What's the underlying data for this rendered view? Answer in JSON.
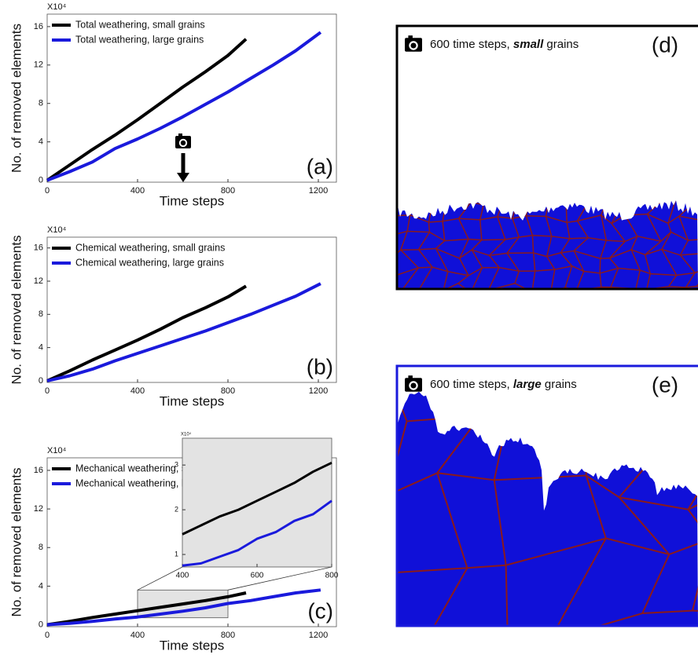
{
  "chart_data": [
    {
      "type": "line",
      "panel_label": "(a)",
      "xlabel": "Time steps",
      "ylabel": "No. of removed elements",
      "y_multiplier": "X10⁴",
      "xlim": [
        0,
        1280
      ],
      "ylim": [
        -0.2,
        17.3
      ],
      "xticks": [
        0,
        400,
        800,
        1200
      ],
      "yticks": [
        0,
        4,
        8,
        12,
        16
      ],
      "legend_position": "upper left",
      "series": [
        {
          "name": "Total weathering,  small grains",
          "color": "#000000",
          "x": [
            0,
            100,
            200,
            300,
            400,
            500,
            600,
            700,
            800,
            880
          ],
          "values": [
            0,
            1.6,
            3.2,
            4.7,
            6.3,
            8.0,
            9.7,
            11.3,
            13.0,
            14.7
          ]
        },
        {
          "name": "Total weathering,  large grains",
          "color": "#1a1adc",
          "x": [
            0,
            100,
            200,
            300,
            400,
            500,
            600,
            700,
            800,
            900,
            1000,
            1100,
            1210
          ],
          "values": [
            0,
            0.9,
            1.9,
            3.3,
            4.3,
            5.4,
            6.6,
            7.9,
            9.2,
            10.6,
            12.0,
            13.5,
            15.4
          ]
        }
      ]
    },
    {
      "type": "line",
      "panel_label": "(b)",
      "xlabel": "Time steps",
      "ylabel": "No. of removed elements",
      "y_multiplier": "X10⁴",
      "xlim": [
        0,
        1280
      ],
      "ylim": [
        -0.2,
        17.3
      ],
      "xticks": [
        0,
        400,
        800,
        1200
      ],
      "yticks": [
        0,
        4,
        8,
        12,
        16
      ],
      "legend_position": "upper left",
      "series": [
        {
          "name": "Chemical weathering,  small grains",
          "color": "#000000",
          "x": [
            0,
            100,
            200,
            300,
            400,
            500,
            600,
            700,
            800,
            880
          ],
          "values": [
            0,
            1.2,
            2.5,
            3.7,
            4.9,
            6.2,
            7.6,
            8.8,
            10.1,
            11.4
          ]
        },
        {
          "name": "Chemical weathering,  large grains",
          "color": "#1a1adc",
          "x": [
            0,
            100,
            200,
            300,
            400,
            500,
            600,
            700,
            800,
            900,
            1000,
            1100,
            1210
          ],
          "values": [
            0,
            0.6,
            1.4,
            2.4,
            3.3,
            4.2,
            5.1,
            6.0,
            7.0,
            8.0,
            9.1,
            10.2,
            11.7
          ]
        }
      ]
    },
    {
      "type": "line",
      "panel_label": "(c)",
      "xlabel": "Time steps",
      "ylabel": "No. of removed elements",
      "y_multiplier": "X10⁴",
      "xlim": [
        0,
        1280
      ],
      "ylim": [
        -0.2,
        17.3
      ],
      "xticks": [
        0,
        400,
        800,
        1200
      ],
      "yticks": [
        0,
        4,
        8,
        12,
        16
      ],
      "legend_position": "upper left",
      "series": [
        {
          "name": "Mechanical weathering,  small grains",
          "color": "#000000",
          "x": [
            0,
            100,
            200,
            300,
            400,
            500,
            600,
            700,
            800,
            880
          ],
          "values": [
            0,
            0.35,
            0.75,
            1.1,
            1.45,
            1.8,
            2.15,
            2.5,
            2.9,
            3.3
          ]
        },
        {
          "name": "Mechanical weathering,  large grains",
          "color": "#1a1adc",
          "x": [
            0,
            100,
            200,
            300,
            400,
            500,
            600,
            700,
            800,
            900,
            1000,
            1100,
            1210
          ],
          "values": [
            0,
            0.15,
            0.35,
            0.6,
            0.8,
            1.1,
            1.4,
            1.75,
            2.2,
            2.5,
            2.9,
            3.3,
            3.6
          ]
        }
      ]
    },
    {
      "type": "line",
      "y_multiplier": "X10⁴",
      "xlim": [
        400,
        800
      ],
      "ylim": [
        0.72,
        3.6
      ],
      "xticks": [
        400,
        600,
        800
      ],
      "yticks": [
        1,
        2,
        3
      ],
      "series": [
        {
          "color": "#000000",
          "x": [
            400,
            450,
            500,
            550,
            600,
            650,
            700,
            750,
            800
          ],
          "values": [
            1.45,
            1.65,
            1.85,
            2.0,
            2.2,
            2.4,
            2.6,
            2.85,
            3.05
          ]
        },
        {
          "color": "#1a1adc",
          "x": [
            400,
            450,
            500,
            550,
            600,
            650,
            700,
            750,
            800
          ],
          "values": [
            0.75,
            0.8,
            0.95,
            1.1,
            1.35,
            1.5,
            1.75,
            1.9,
            2.2
          ]
        }
      ]
    }
  ],
  "images": [
    {
      "label": "(d)",
      "caption": [
        "600 time steps, ",
        "small",
        " grains"
      ]
    },
    {
      "label": "(e)",
      "caption": [
        "600 time steps, ",
        "large",
        " grains"
      ]
    }
  ]
}
